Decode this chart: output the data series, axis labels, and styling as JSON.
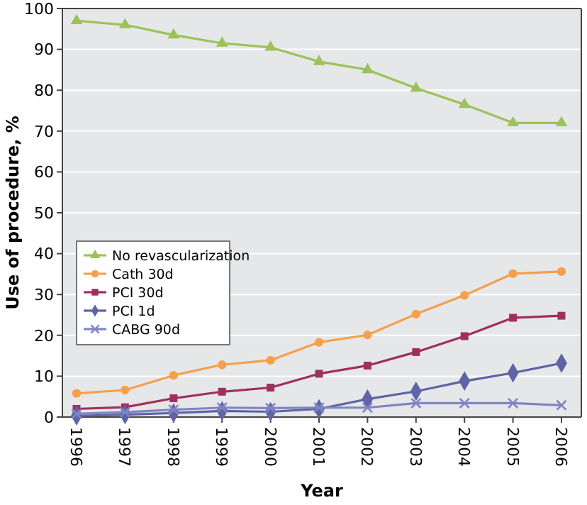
{
  "chart_data": {
    "type": "line",
    "xlabel": "Year",
    "ylabel": "Use of procedure, %",
    "categories": [
      "1996",
      "1997",
      "1998",
      "1999",
      "2000",
      "2001",
      "2002",
      "2003",
      "2004",
      "2005",
      "2006"
    ],
    "ylim": [
      0,
      100
    ],
    "yticks": [
      0,
      10,
      20,
      30,
      40,
      50,
      60,
      70,
      80,
      90,
      100
    ],
    "grid": "y",
    "legend": "left",
    "series": [
      {
        "name": "No revascularization",
        "color": "#9cc25a",
        "marker": "triangle",
        "values": [
          97,
          96,
          93.5,
          91.5,
          90.5,
          87,
          85,
          80.5,
          76.5,
          72,
          72
        ]
      },
      {
        "name": "Cath 30d",
        "color": "#f5a04b",
        "marker": "circle",
        "values": [
          5.8,
          6.6,
          10.2,
          12.8,
          13.9,
          18.3,
          20.1,
          25.2,
          29.8,
          35.1,
          35.6
        ]
      },
      {
        "name": "PCI 30d",
        "color": "#9e2f5e",
        "marker": "square",
        "values": [
          2.0,
          2.4,
          4.6,
          6.2,
          7.2,
          10.6,
          12.6,
          15.9,
          19.8,
          24.3,
          24.8
        ]
      },
      {
        "name": "PCI 1d",
        "color": "#5e64a6",
        "marker": "diamond",
        "values": [
          0.3,
          0.6,
          1.0,
          1.5,
          1.3,
          2.0,
          4.4,
          6.3,
          8.8,
          10.8,
          13.2
        ]
      },
      {
        "name": "CABG 90d",
        "color": "#8084c4",
        "marker": "cross",
        "values": [
          0.8,
          1.2,
          1.8,
          2.3,
          2.2,
          2.3,
          2.3,
          3.4,
          3.4,
          3.4,
          2.9
        ]
      }
    ]
  }
}
